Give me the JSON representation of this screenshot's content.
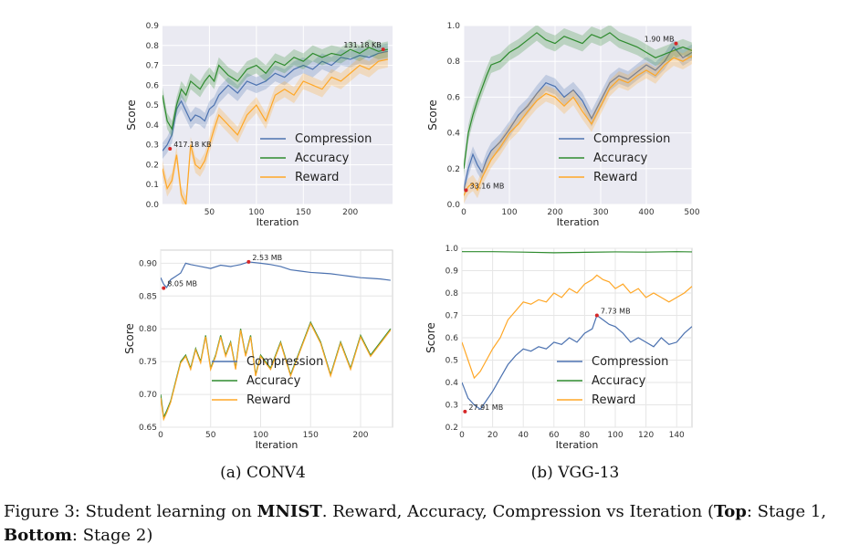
{
  "chart_data": [
    {
      "type": "line",
      "id": "conv4-stage1",
      "xlabel": "Iteration",
      "ylabel": "Score",
      "xlim": [
        0,
        245
      ],
      "ylim": [
        0.0,
        0.9
      ],
      "xticks": [
        "50",
        "100",
        "150",
        "200"
      ],
      "yticks": [
        "0.0",
        "0.1",
        "0.2",
        "0.3",
        "0.4",
        "0.5",
        "0.6",
        "0.7",
        "0.8",
        "0.9"
      ],
      "grid": true,
      "legend_position": "center-right",
      "shaded_band": true,
      "series": [
        {
          "name": "Compression",
          "color": "#4c72b0",
          "x": [
            0,
            5,
            10,
            15,
            20,
            25,
            30,
            35,
            40,
            45,
            50,
            55,
            60,
            70,
            80,
            90,
            100,
            110,
            120,
            130,
            140,
            150,
            160,
            170,
            180,
            190,
            200,
            210,
            220,
            230,
            240
          ],
          "y": [
            0.27,
            0.3,
            0.35,
            0.48,
            0.52,
            0.47,
            0.42,
            0.45,
            0.44,
            0.42,
            0.48,
            0.5,
            0.55,
            0.6,
            0.56,
            0.62,
            0.6,
            0.62,
            0.66,
            0.64,
            0.68,
            0.7,
            0.68,
            0.72,
            0.7,
            0.74,
            0.73,
            0.75,
            0.74,
            0.76,
            0.77
          ]
        },
        {
          "name": "Accuracy",
          "color": "#2e8b2e",
          "x": [
            0,
            5,
            10,
            15,
            20,
            25,
            30,
            35,
            40,
            45,
            50,
            55,
            60,
            70,
            80,
            90,
            100,
            110,
            120,
            130,
            140,
            150,
            160,
            170,
            180,
            190,
            200,
            210,
            220,
            230,
            240
          ],
          "y": [
            0.55,
            0.42,
            0.38,
            0.5,
            0.58,
            0.55,
            0.62,
            0.6,
            0.58,
            0.62,
            0.65,
            0.62,
            0.7,
            0.65,
            0.62,
            0.68,
            0.7,
            0.66,
            0.72,
            0.7,
            0.74,
            0.72,
            0.76,
            0.74,
            0.76,
            0.75,
            0.78,
            0.76,
            0.79,
            0.77,
            0.78
          ]
        },
        {
          "name": "Reward",
          "color": "#ffa726",
          "x": [
            0,
            5,
            10,
            15,
            20,
            25,
            30,
            35,
            40,
            45,
            50,
            55,
            60,
            70,
            80,
            90,
            100,
            110,
            120,
            130,
            140,
            150,
            160,
            170,
            180,
            190,
            200,
            210,
            220,
            230,
            240
          ],
          "y": [
            0.18,
            0.08,
            0.12,
            0.25,
            0.05,
            0.0,
            0.3,
            0.2,
            0.18,
            0.22,
            0.3,
            0.38,
            0.45,
            0.4,
            0.35,
            0.45,
            0.5,
            0.42,
            0.55,
            0.58,
            0.55,
            0.62,
            0.6,
            0.58,
            0.64,
            0.62,
            0.66,
            0.7,
            0.68,
            0.72,
            0.73
          ]
        }
      ],
      "annotations": [
        {
          "text": "417.18 KB",
          "x": 8,
          "y": 0.28
        },
        {
          "text": "131.18 KB",
          "x": 235,
          "y": 0.78
        }
      ]
    },
    {
      "type": "line",
      "id": "vgg13-stage1",
      "xlabel": "Iteration",
      "ylabel": "Score",
      "xlim": [
        0,
        500
      ],
      "ylim": [
        0.0,
        1.0
      ],
      "xticks": [
        "0",
        "100",
        "200",
        "300",
        "400",
        "500"
      ],
      "yticks": [
        "0.0",
        "0.2",
        "0.4",
        "0.6",
        "0.8",
        "1.0"
      ],
      "grid": true,
      "legend_position": "center-right",
      "shaded_band": true,
      "series": [
        {
          "name": "Compression",
          "color": "#4c72b0",
          "x": [
            0,
            10,
            20,
            30,
            40,
            50,
            60,
            80,
            100,
            120,
            140,
            160,
            180,
            200,
            220,
            240,
            260,
            280,
            300,
            320,
            340,
            360,
            380,
            400,
            420,
            440,
            460,
            480,
            500
          ],
          "y": [
            0.08,
            0.2,
            0.28,
            0.22,
            0.18,
            0.25,
            0.3,
            0.35,
            0.42,
            0.5,
            0.55,
            0.62,
            0.68,
            0.66,
            0.6,
            0.64,
            0.58,
            0.48,
            0.58,
            0.68,
            0.72,
            0.7,
            0.74,
            0.78,
            0.75,
            0.8,
            0.88,
            0.82,
            0.85
          ]
        },
        {
          "name": "Accuracy",
          "color": "#2e8b2e",
          "x": [
            0,
            10,
            20,
            30,
            40,
            50,
            60,
            80,
            100,
            120,
            140,
            160,
            180,
            200,
            220,
            240,
            260,
            280,
            300,
            320,
            340,
            360,
            380,
            400,
            420,
            440,
            460,
            480,
            500
          ],
          "y": [
            0.2,
            0.4,
            0.5,
            0.58,
            0.65,
            0.72,
            0.78,
            0.8,
            0.85,
            0.88,
            0.92,
            0.96,
            0.92,
            0.9,
            0.94,
            0.92,
            0.9,
            0.95,
            0.93,
            0.96,
            0.92,
            0.9,
            0.88,
            0.85,
            0.82,
            0.84,
            0.86,
            0.88,
            0.86
          ]
        },
        {
          "name": "Reward",
          "color": "#ffa726",
          "x": [
            0,
            10,
            20,
            30,
            40,
            50,
            60,
            80,
            100,
            120,
            140,
            160,
            180,
            200,
            220,
            240,
            260,
            280,
            300,
            320,
            340,
            360,
            380,
            400,
            420,
            440,
            460,
            480,
            500
          ],
          "y": [
            0.05,
            0.1,
            0.12,
            0.08,
            0.15,
            0.2,
            0.25,
            0.32,
            0.4,
            0.45,
            0.52,
            0.58,
            0.62,
            0.6,
            0.55,
            0.6,
            0.52,
            0.45,
            0.55,
            0.65,
            0.7,
            0.68,
            0.72,
            0.75,
            0.72,
            0.78,
            0.82,
            0.8,
            0.83
          ]
        }
      ],
      "annotations": [
        {
          "text": "33.16 MB",
          "x": 5,
          "y": 0.08
        },
        {
          "text": "1.90 MB",
          "x": 465,
          "y": 0.9
        }
      ]
    },
    {
      "type": "line",
      "id": "conv4-stage2",
      "xlabel": "Iteration",
      "ylabel": "Score",
      "xlim": [
        0,
        232
      ],
      "ylim": [
        0.65,
        0.92
      ],
      "xticks": [
        "0",
        "50",
        "100",
        "150",
        "200"
      ],
      "yticks": [
        "0.65",
        "0.70",
        "0.75",
        "0.80",
        "0.85",
        "0.90"
      ],
      "grid": true,
      "legend_position": "bottom-center",
      "shaded_band": false,
      "series": [
        {
          "name": "Compression",
          "color": "#4c72b0",
          "x": [
            0,
            3,
            6,
            10,
            15,
            20,
            25,
            30,
            40,
            50,
            60,
            70,
            80,
            88,
            100,
            110,
            120,
            130,
            140,
            150,
            160,
            170,
            180,
            190,
            200,
            210,
            220,
            230
          ],
          "y": [
            0.878,
            0.868,
            0.863,
            0.875,
            0.88,
            0.885,
            0.9,
            0.898,
            0.895,
            0.892,
            0.897,
            0.895,
            0.898,
            0.902,
            0.9,
            0.898,
            0.895,
            0.89,
            0.888,
            0.886,
            0.885,
            0.884,
            0.882,
            0.88,
            0.878,
            0.877,
            0.876,
            0.874
          ]
        },
        {
          "name": "Accuracy",
          "color": "#2e8b2e",
          "x": [
            0,
            3,
            6,
            10,
            15,
            20,
            25,
            30,
            35,
            40,
            45,
            50,
            55,
            60,
            65,
            70,
            75,
            80,
            85,
            90,
            95,
            100,
            110,
            120,
            130,
            140,
            150,
            160,
            170,
            180,
            190,
            200,
            210,
            220,
            230
          ],
          "y": [
            0.7,
            0.665,
            0.675,
            0.69,
            0.72,
            0.75,
            0.76,
            0.74,
            0.77,
            0.75,
            0.79,
            0.74,
            0.76,
            0.79,
            0.76,
            0.78,
            0.74,
            0.8,
            0.76,
            0.79,
            0.73,
            0.76,
            0.74,
            0.78,
            0.73,
            0.77,
            0.81,
            0.78,
            0.73,
            0.78,
            0.74,
            0.79,
            0.76,
            0.78,
            0.8
          ]
        },
        {
          "name": "Reward",
          "color": "#ffa726",
          "x": [
            0,
            3,
            6,
            10,
            15,
            20,
            25,
            30,
            35,
            40,
            45,
            50,
            55,
            60,
            65,
            70,
            75,
            80,
            85,
            90,
            95,
            100,
            110,
            120,
            130,
            140,
            150,
            160,
            170,
            180,
            190,
            200,
            210,
            220,
            230
          ],
          "y": [
            0.695,
            0.662,
            0.672,
            0.688,
            0.718,
            0.748,
            0.758,
            0.738,
            0.768,
            0.748,
            0.788,
            0.738,
            0.758,
            0.788,
            0.758,
            0.778,
            0.738,
            0.798,
            0.758,
            0.788,
            0.728,
            0.758,
            0.738,
            0.778,
            0.728,
            0.768,
            0.808,
            0.778,
            0.728,
            0.778,
            0.738,
            0.788,
            0.758,
            0.778,
            0.798
          ]
        }
      ],
      "annotations": [
        {
          "text": "8.05 MB",
          "x": 3,
          "y": 0.862
        },
        {
          "text": "2.53 MB",
          "x": 88,
          "y": 0.902
        }
      ]
    },
    {
      "type": "line",
      "id": "vgg13-stage2",
      "xlabel": "Iteration",
      "ylabel": "Score",
      "xlim": [
        0,
        150
      ],
      "ylim": [
        0.2,
        1.0
      ],
      "xticks": [
        "0",
        "20",
        "40",
        "60",
        "80",
        "100",
        "120",
        "140"
      ],
      "yticks": [
        "0.2",
        "0.3",
        "0.4",
        "0.5",
        "0.6",
        "0.7",
        "0.8",
        "0.9",
        "1.0"
      ],
      "grid": true,
      "legend_position": "bottom-right",
      "shaded_band": false,
      "series": [
        {
          "name": "Compression",
          "color": "#4c72b0",
          "x": [
            0,
            4,
            8,
            12,
            16,
            20,
            25,
            30,
            35,
            40,
            45,
            50,
            55,
            60,
            65,
            70,
            75,
            80,
            85,
            88,
            92,
            96,
            100,
            105,
            110,
            115,
            120,
            125,
            130,
            135,
            140,
            145,
            150
          ],
          "y": [
            0.4,
            0.33,
            0.3,
            0.28,
            0.32,
            0.36,
            0.42,
            0.48,
            0.52,
            0.55,
            0.54,
            0.56,
            0.55,
            0.58,
            0.57,
            0.6,
            0.58,
            0.62,
            0.64,
            0.7,
            0.68,
            0.66,
            0.65,
            0.62,
            0.58,
            0.6,
            0.58,
            0.56,
            0.6,
            0.57,
            0.58,
            0.62,
            0.65
          ]
        },
        {
          "name": "Accuracy",
          "color": "#2e8b2e",
          "x": [
            0,
            20,
            40,
            60,
            80,
            100,
            120,
            140,
            150
          ],
          "y": [
            0.985,
            0.985,
            0.983,
            0.98,
            0.982,
            0.984,
            0.983,
            0.985,
            0.984
          ]
        },
        {
          "name": "Reward",
          "color": "#ffa726",
          "x": [
            0,
            4,
            8,
            12,
            16,
            20,
            25,
            30,
            35,
            40,
            45,
            50,
            55,
            60,
            65,
            70,
            75,
            80,
            85,
            88,
            92,
            96,
            100,
            105,
            110,
            115,
            120,
            125,
            130,
            135,
            140,
            145,
            150
          ],
          "y": [
            0.58,
            0.5,
            0.42,
            0.45,
            0.5,
            0.55,
            0.6,
            0.68,
            0.72,
            0.76,
            0.75,
            0.77,
            0.76,
            0.8,
            0.78,
            0.82,
            0.8,
            0.84,
            0.86,
            0.88,
            0.86,
            0.85,
            0.82,
            0.84,
            0.8,
            0.82,
            0.78,
            0.8,
            0.78,
            0.76,
            0.78,
            0.8,
            0.83
          ]
        }
      ],
      "annotations": [
        {
          "text": "27.91 MB",
          "x": 2,
          "y": 0.27
        },
        {
          "text": "7.73 MB",
          "x": 88,
          "y": 0.7
        }
      ]
    }
  ],
  "subcaptions": {
    "a": "(a) CONV4",
    "b": "(b) VGG-13"
  },
  "caption": {
    "prefix": "Figure 3: Student learning on ",
    "bold1": "MNIST",
    "mid1": ". Reward, Accuracy, Compression vs Iteration (",
    "bold2": "Top",
    "mid2": ": Stage 1,",
    "bold3": "Bottom",
    "suffix": ": Stage 2)"
  }
}
